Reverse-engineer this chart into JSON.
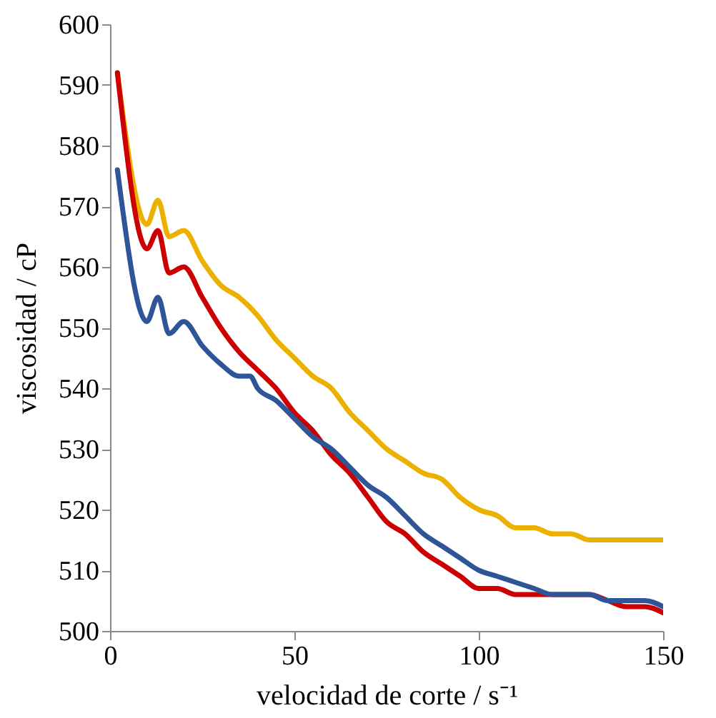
{
  "chart_data": {
    "type": "line",
    "xlabel": "velocidad de corte / s⁻¹",
    "ylabel": "viscosidad / cP",
    "xlim": [
      0,
      150
    ],
    "xticks": [
      0,
      50,
      100,
      150
    ],
    "ylim": [
      500,
      600
    ],
    "yticks": [
      500,
      510,
      520,
      530,
      540,
      550,
      560,
      570,
      580,
      590,
      600
    ],
    "line_style": "solid",
    "marker": "none",
    "grid": false,
    "series": [
      {
        "color": "#ecb100",
        "x": [
          2,
          10,
          13,
          16,
          20,
          25,
          30,
          35,
          40,
          45,
          50,
          55,
          60,
          65,
          70,
          75,
          80,
          85,
          90,
          95,
          100,
          105,
          110,
          115,
          120,
          125,
          130,
          140,
          150
        ],
        "values": [
          592,
          567,
          571,
          565,
          566,
          561,
          557,
          555,
          552,
          548,
          545,
          542,
          540,
          536,
          533,
          530,
          528,
          526,
          525,
          522,
          520,
          519,
          517,
          517,
          516,
          516,
          515,
          515,
          515
        ]
      },
      {
        "color": "#cc0000",
        "x": [
          2,
          10,
          13,
          16,
          20,
          25,
          30,
          35,
          40,
          45,
          50,
          55,
          60,
          65,
          70,
          75,
          80,
          85,
          90,
          95,
          100,
          105,
          110,
          120,
          130,
          135,
          140,
          145,
          150
        ],
        "values": [
          592,
          563,
          566,
          559,
          560,
          555,
          550,
          546,
          543,
          540,
          536,
          533,
          529,
          526,
          522,
          518,
          516,
          513,
          511,
          509,
          507,
          507,
          506,
          506,
          506,
          505,
          504,
          504,
          503
        ]
      },
      {
        "color": "#2e5597",
        "x": [
          2,
          10,
          13,
          16,
          20,
          25,
          30,
          35,
          38,
          40,
          45,
          50,
          55,
          60,
          65,
          70,
          75,
          80,
          85,
          90,
          95,
          100,
          105,
          110,
          115,
          120,
          125,
          130,
          135,
          145,
          150
        ],
        "values": [
          576,
          551,
          555,
          549,
          551,
          547,
          544,
          542,
          542,
          540,
          538,
          535,
          532,
          530,
          527,
          524,
          522,
          519,
          516,
          514,
          512,
          510,
          509,
          508,
          507,
          506,
          506,
          506,
          505,
          505,
          504
        ]
      }
    ]
  }
}
